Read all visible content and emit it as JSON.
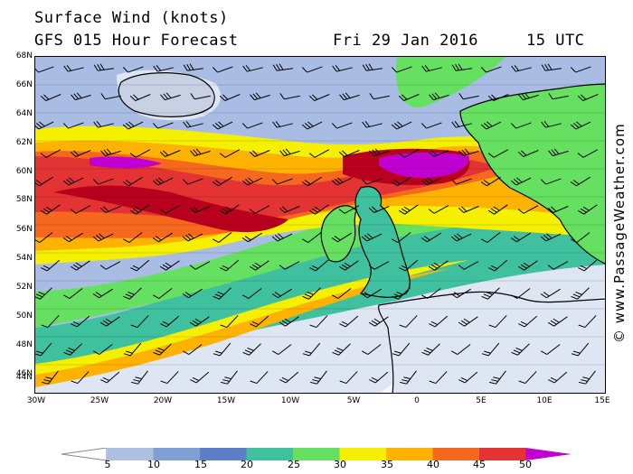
{
  "header": {
    "title": "Surface Wind (knots)",
    "subtitle": "GFS 015 Hour Forecast",
    "date": "Fri 29 Jan 2016",
    "time": "15 UTC"
  },
  "credit": "© www.PassageWeather.com",
  "axes": {
    "lat_labels": [
      "68N",
      "66N",
      "64N",
      "62N",
      "60N",
      "58N",
      "56N",
      "54N",
      "52N",
      "50N",
      "48N",
      "46N",
      "44N"
    ],
    "lon_labels": [
      "30W",
      "25W",
      "20W",
      "15W",
      "10W",
      "5W",
      "0",
      "5E",
      "10E",
      "15E"
    ]
  },
  "legend": {
    "values": [
      "5",
      "10",
      "15",
      "20",
      "25",
      "30",
      "35",
      "40",
      "45",
      "50"
    ],
    "colors": [
      "#ffffff",
      "#dfe6f3",
      "#aebfe2",
      "#7f9fd5",
      "#5b80c9",
      "#3fc09e",
      "#66e060",
      "#f5f000",
      "#ffb300",
      "#f6681e",
      "#e33333",
      "#b8001e",
      "#c000d0"
    ]
  },
  "colors": {
    "land_outline": "#000000",
    "calm": "#dfe6f3",
    "strong": "#e33333",
    "extreme": "#c000d0"
  }
}
